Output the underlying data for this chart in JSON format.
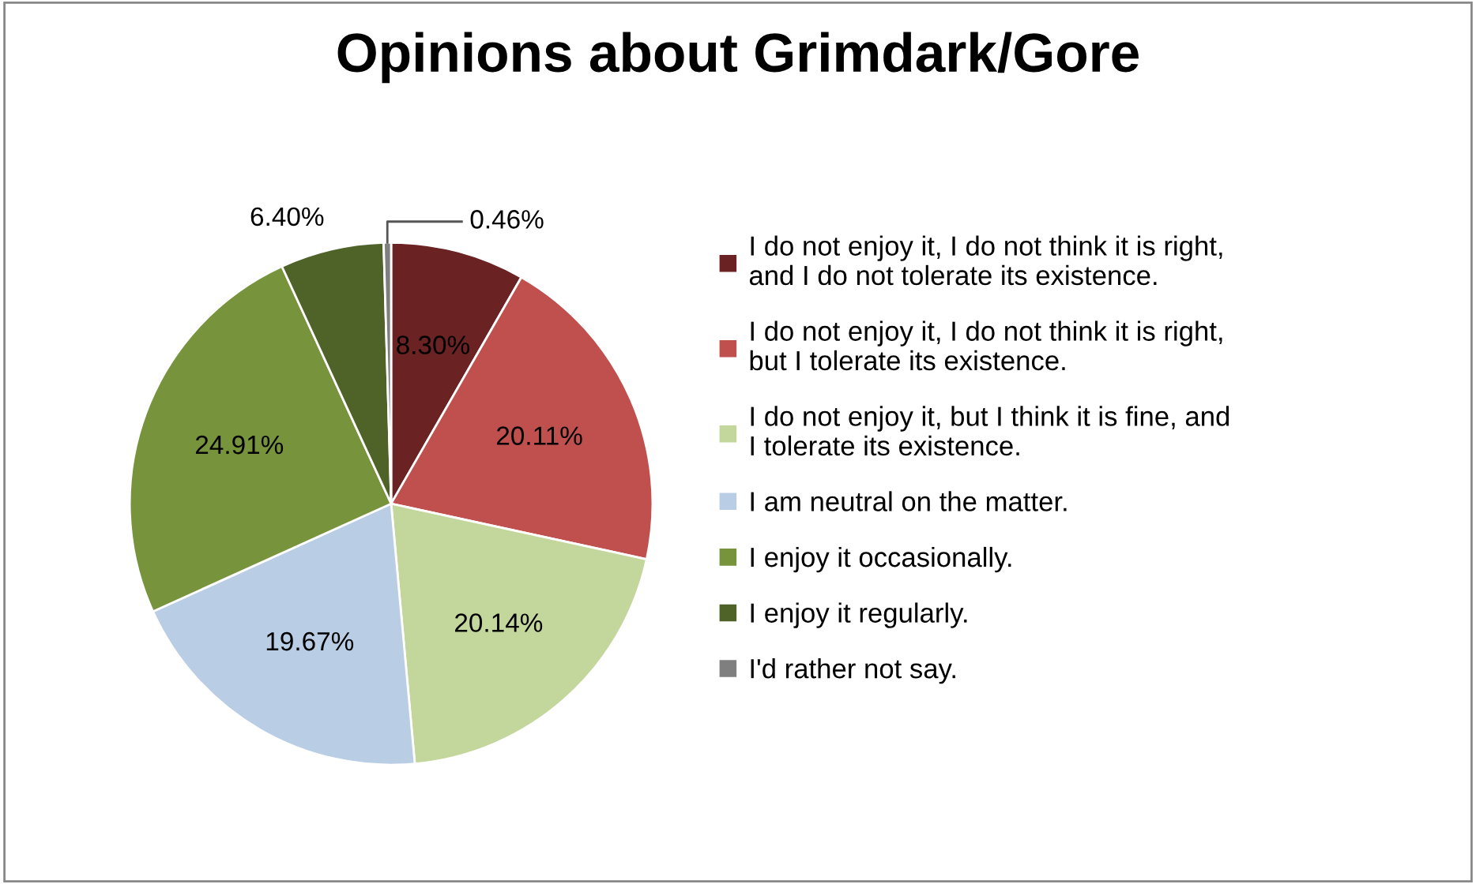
{
  "chart_data": {
    "type": "pie",
    "title": "Opinions about Grimdark/Gore",
    "categories": [
      "I do not enjoy it, I do not think it is right,\nand I do not tolerate its existence.",
      "I do not enjoy it, I do not think it is right,\nbut I tolerate its existence.",
      "I do not enjoy it, but I think it is fine, and\nI tolerate its existence.",
      "I am neutral on the matter.",
      "I enjoy it occasionally.",
      "I enjoy it regularly.",
      "I'd rather not say."
    ],
    "values": [
      8.3,
      20.11,
      20.14,
      19.67,
      24.91,
      6.4,
      0.46
    ],
    "colors": [
      "#6b2222",
      "#c0504d",
      "#c3d69b",
      "#b9cde5",
      "#77933c",
      "#4f6228",
      "#7f7f7f"
    ],
    "value_labels": [
      "8.30%",
      "20.11%",
      "20.14%",
      "19.67%",
      "24.91%",
      "6.40%",
      "0.46%"
    ],
    "legend": "right"
  }
}
